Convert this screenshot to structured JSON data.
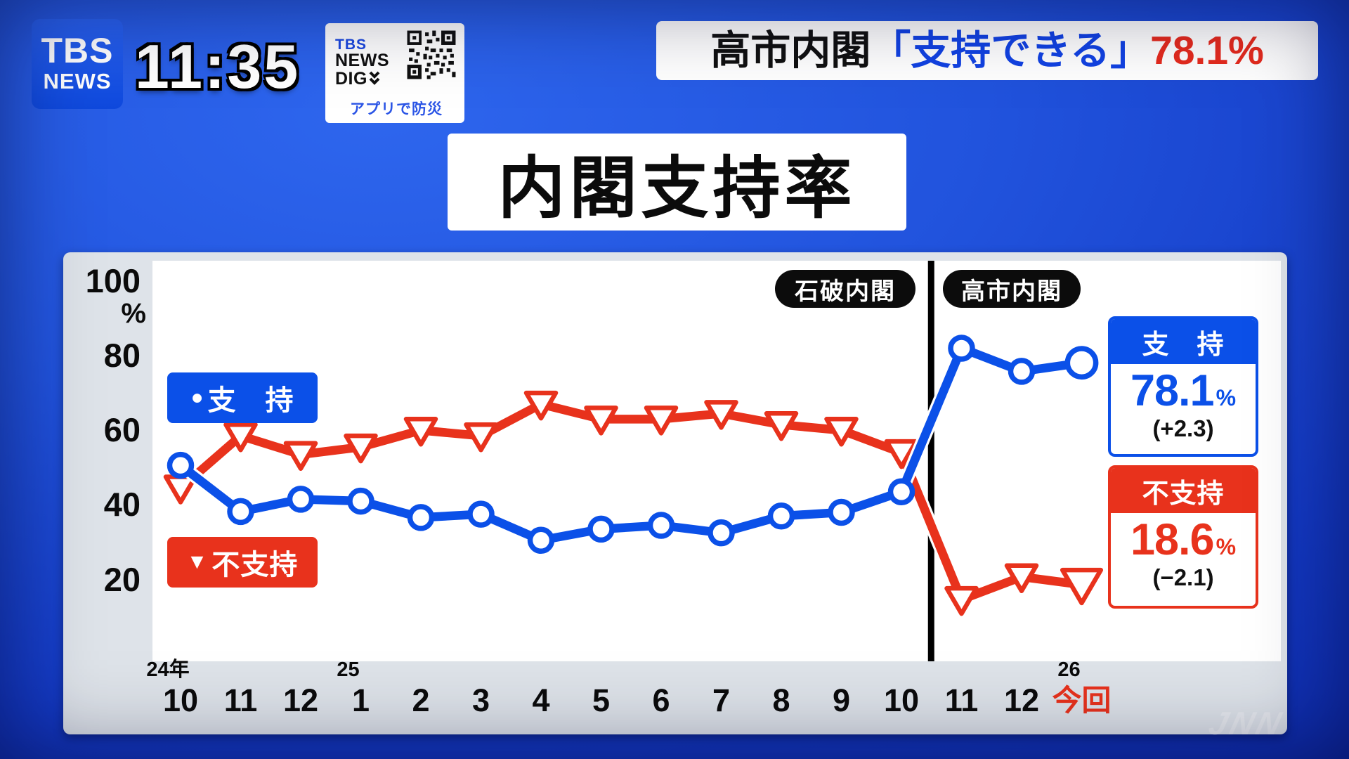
{
  "header": {
    "logo": {
      "line1": "TBS",
      "line2": "NEWS"
    },
    "clock": "11:35",
    "dig_badge": {
      "brand_tbs": "TBS",
      "brand_news": "NEWS",
      "brand_dig": "DIG",
      "tagline": "アプリで防災"
    },
    "headline": {
      "prefix": "高市内閣",
      "quoted": "「支持できる」",
      "value": "78.1%"
    }
  },
  "title": "内閣支持率",
  "chart_data": {
    "type": "line",
    "title": "内閣支持率",
    "x_labels": [
      "10",
      "11",
      "12",
      "1",
      "2",
      "3",
      "4",
      "5",
      "6",
      "7",
      "8",
      "9",
      "10",
      "11",
      "12",
      "今回"
    ],
    "year_labels": [
      {
        "text": "24年",
        "month_index": 0
      },
      {
        "text": "25",
        "month_index": 3
      },
      {
        "text": "26",
        "month_index": 15
      }
    ],
    "y_ticks": [
      100,
      80,
      60,
      40,
      20
    ],
    "y_unit": "%",
    "ylim": [
      0,
      100
    ],
    "grid": false,
    "legend_position": "inside-left",
    "divider_between_indices": [
      12,
      13
    ],
    "annotations": [
      "石破内閣",
      "高市内閣"
    ],
    "legend": {
      "approve": {
        "marker": "●",
        "label": "支　持"
      },
      "disapprove": {
        "marker": "▼",
        "label": "不支持"
      }
    },
    "series": [
      {
        "name": "支持",
        "marker": "circle",
        "color": "#0b50e8",
        "values": [
          50.6,
          38.2,
          41.5,
          41.0,
          36.6,
          37.5,
          30.5,
          33.5,
          34.5,
          32.5,
          37.0,
          38.0,
          43.5,
          82.0,
          75.8,
          78.1
        ]
      },
      {
        "name": "不支持",
        "marker": "triangle-down",
        "color": "#e8321c",
        "values": [
          44.5,
          58.5,
          53.5,
          55.5,
          60.0,
          58.5,
          67.0,
          63.0,
          63.0,
          64.5,
          61.5,
          60.0,
          54.0,
          14.6,
          20.7,
          18.6
        ]
      }
    ]
  },
  "stats": {
    "approve": {
      "label": "支　持",
      "value": "78.1",
      "unit": "%",
      "change": "(+2.3)"
    },
    "disapprove": {
      "label": "不支持",
      "value": "18.6",
      "unit": "%",
      "change": "(−2.1)"
    }
  },
  "watermark": "JNN"
}
